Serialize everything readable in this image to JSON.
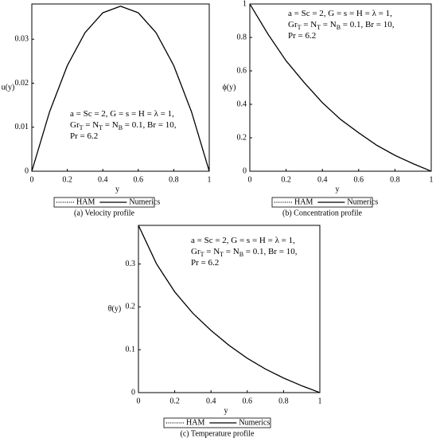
{
  "chart_data": [
    {
      "type": "line",
      "caption": "(a) Velocity profile",
      "xlabel": "y",
      "ylabel": "u(y)",
      "x": [
        0,
        0.1,
        0.2,
        0.3,
        0.4,
        0.5,
        0.6,
        0.7,
        0.8,
        0.9,
        1
      ],
      "series": [
        {
          "name": "HAM",
          "color": "#000000",
          "style": "dotted",
          "values": [
            0,
            0.0135,
            0.024,
            0.0315,
            0.036,
            0.0375,
            0.036,
            0.0315,
            0.024,
            0.0135,
            0
          ]
        },
        {
          "name": "Numerics",
          "color": "#000000",
          "style": "solid",
          "values": [
            0,
            0.0135,
            0.024,
            0.0315,
            0.036,
            0.0375,
            0.036,
            0.0315,
            0.024,
            0.0135,
            0
          ]
        }
      ],
      "xlim": [
        0,
        1
      ],
      "xticks": [
        0,
        0.2,
        0.4,
        0.6,
        0.8,
        1
      ],
      "ylim": [
        0,
        0.038
      ],
      "yticks": [
        0,
        0.01,
        0.02,
        0.03
      ],
      "annotation": [
        [
          "a = Sc = 2, G = s = H = λ = 1,"
        ],
        [
          "Gr",
          {
            "sub": "T"
          },
          " =  N",
          {
            "sub": "T"
          },
          " = N",
          {
            "sub": "B"
          },
          " = 0.1, Br = 10,"
        ],
        [
          "Pr = 6.2"
        ]
      ]
    },
    {
      "type": "line",
      "caption": "(b) Concentration profile",
      "xlabel": "y",
      "ylabel": "ϕ(y)",
      "x": [
        0,
        0.1,
        0.2,
        0.3,
        0.4,
        0.5,
        0.6,
        0.7,
        0.8,
        0.9,
        1
      ],
      "series": [
        {
          "name": "HAM",
          "color": "#000000",
          "style": "dotted",
          "values": [
            1,
            0.82,
            0.66,
            0.53,
            0.41,
            0.31,
            0.23,
            0.155,
            0.095,
            0.045,
            0
          ]
        },
        {
          "name": "Numerics",
          "color": "#000000",
          "style": "solid",
          "values": [
            1,
            0.82,
            0.66,
            0.53,
            0.41,
            0.31,
            0.23,
            0.155,
            0.095,
            0.045,
            0
          ]
        }
      ],
      "xlim": [
        0,
        1
      ],
      "xticks": [
        0,
        0.2,
        0.4,
        0.6,
        0.8,
        1
      ],
      "ylim": [
        0,
        1
      ],
      "yticks": [
        0,
        0.2,
        0.4,
        0.6,
        0.8,
        1
      ],
      "annotation": [
        [
          "a = Sc = 2, G = s = H = λ = 1,"
        ],
        [
          "Gr",
          {
            "sub": "T"
          },
          " =  N",
          {
            "sub": "T"
          },
          " = N",
          {
            "sub": "B"
          },
          " = 0.1, Br = 10,"
        ],
        [
          "Pr = 6.2"
        ]
      ]
    },
    {
      "type": "line",
      "caption": "(c) Temperature profile",
      "xlabel": "y",
      "ylabel": "θ(y)",
      "x": [
        0,
        0.1,
        0.2,
        0.3,
        0.4,
        0.5,
        0.6,
        0.7,
        0.8,
        0.9,
        1
      ],
      "series": [
        {
          "name": "HAM",
          "color": "#000000",
          "style": "dotted",
          "values": [
            0.39,
            0.3,
            0.235,
            0.185,
            0.145,
            0.11,
            0.08,
            0.055,
            0.034,
            0.016,
            0
          ]
        },
        {
          "name": "Numerics",
          "color": "#000000",
          "style": "solid",
          "values": [
            0.39,
            0.3,
            0.235,
            0.185,
            0.145,
            0.11,
            0.08,
            0.055,
            0.034,
            0.016,
            0
          ]
        }
      ],
      "xlim": [
        0,
        1
      ],
      "xticks": [
        0,
        0.2,
        0.4,
        0.6,
        0.8,
        1
      ],
      "ylim": [
        0,
        0.39
      ],
      "yticks": [
        0,
        0.1,
        0.2,
        0.3
      ],
      "annotation": [
        [
          "a = Sc = 2, G = s = H = λ = 1,"
        ],
        [
          "Gr",
          {
            "sub": "T"
          },
          " =  N",
          {
            "sub": "T"
          },
          " = N",
          {
            "sub": "B"
          },
          " = 0.1, Br = 10,"
        ],
        [
          "Pr = 6.2"
        ]
      ]
    }
  ]
}
